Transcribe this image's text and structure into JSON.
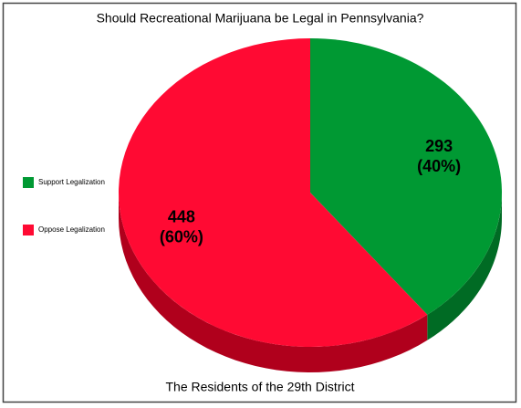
{
  "chart_data": {
    "type": "pie3d",
    "title": "Should Recreational Marijuana be Legal in Pennsylvania?",
    "xlabel": "The Residents of the 29th District",
    "categories": [
      "Support Legalization",
      "Oppose Legalization"
    ],
    "values": [
      293,
      448
    ],
    "percent_labels": [
      "(40%)",
      "(60%)"
    ],
    "colors": [
      "#009933",
      "#ff0a33"
    ],
    "side_colors": [
      "#006b24",
      "#b0001c"
    ],
    "legend": "left"
  }
}
